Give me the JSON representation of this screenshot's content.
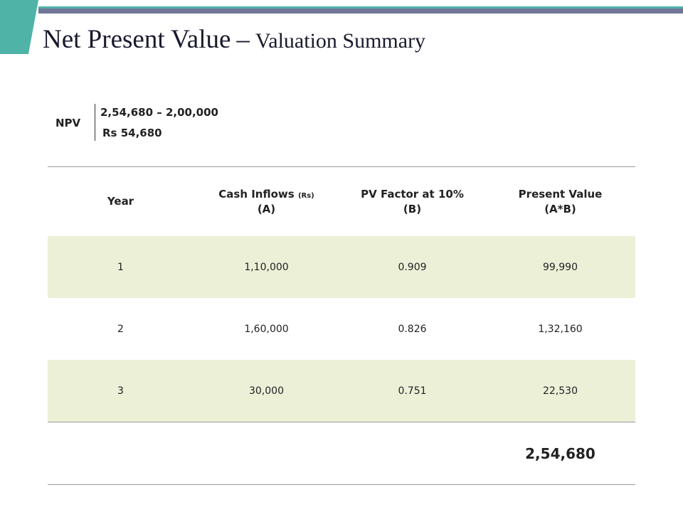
{
  "title": {
    "main": "Net Present Value",
    "dash": "–",
    "sub": "Valuation Summary"
  },
  "npv": {
    "label": "NPV",
    "formula": "2,54,680  – 2,00,000",
    "result": "Rs 54,680"
  },
  "table": {
    "headers": [
      {
        "line1": "Year",
        "small": "",
        "line2": ""
      },
      {
        "line1": "Cash Inflows",
        "small": "(Rs)",
        "line2": "(A)"
      },
      {
        "line1": "PV Factor at 10%",
        "small": "",
        "line2": "(B)"
      },
      {
        "line1": "Present Value",
        "small": "",
        "line2": "(A*B)"
      }
    ],
    "rows": [
      {
        "year": "1",
        "cash": "1,10,000",
        "factor": "0.909",
        "pv": "99,990"
      },
      {
        "year": "2",
        "cash": "1,60,000",
        "factor": "0.826",
        "pv": "1,32,160"
      },
      {
        "year": "3",
        "cash": "30,000",
        "factor": "0.751",
        "pv": "22,530"
      }
    ],
    "total": "2,54,680"
  },
  "colors": {
    "accent": "#4fb3a8",
    "bar": "#707698",
    "row_shade": "#ecf0d7"
  }
}
